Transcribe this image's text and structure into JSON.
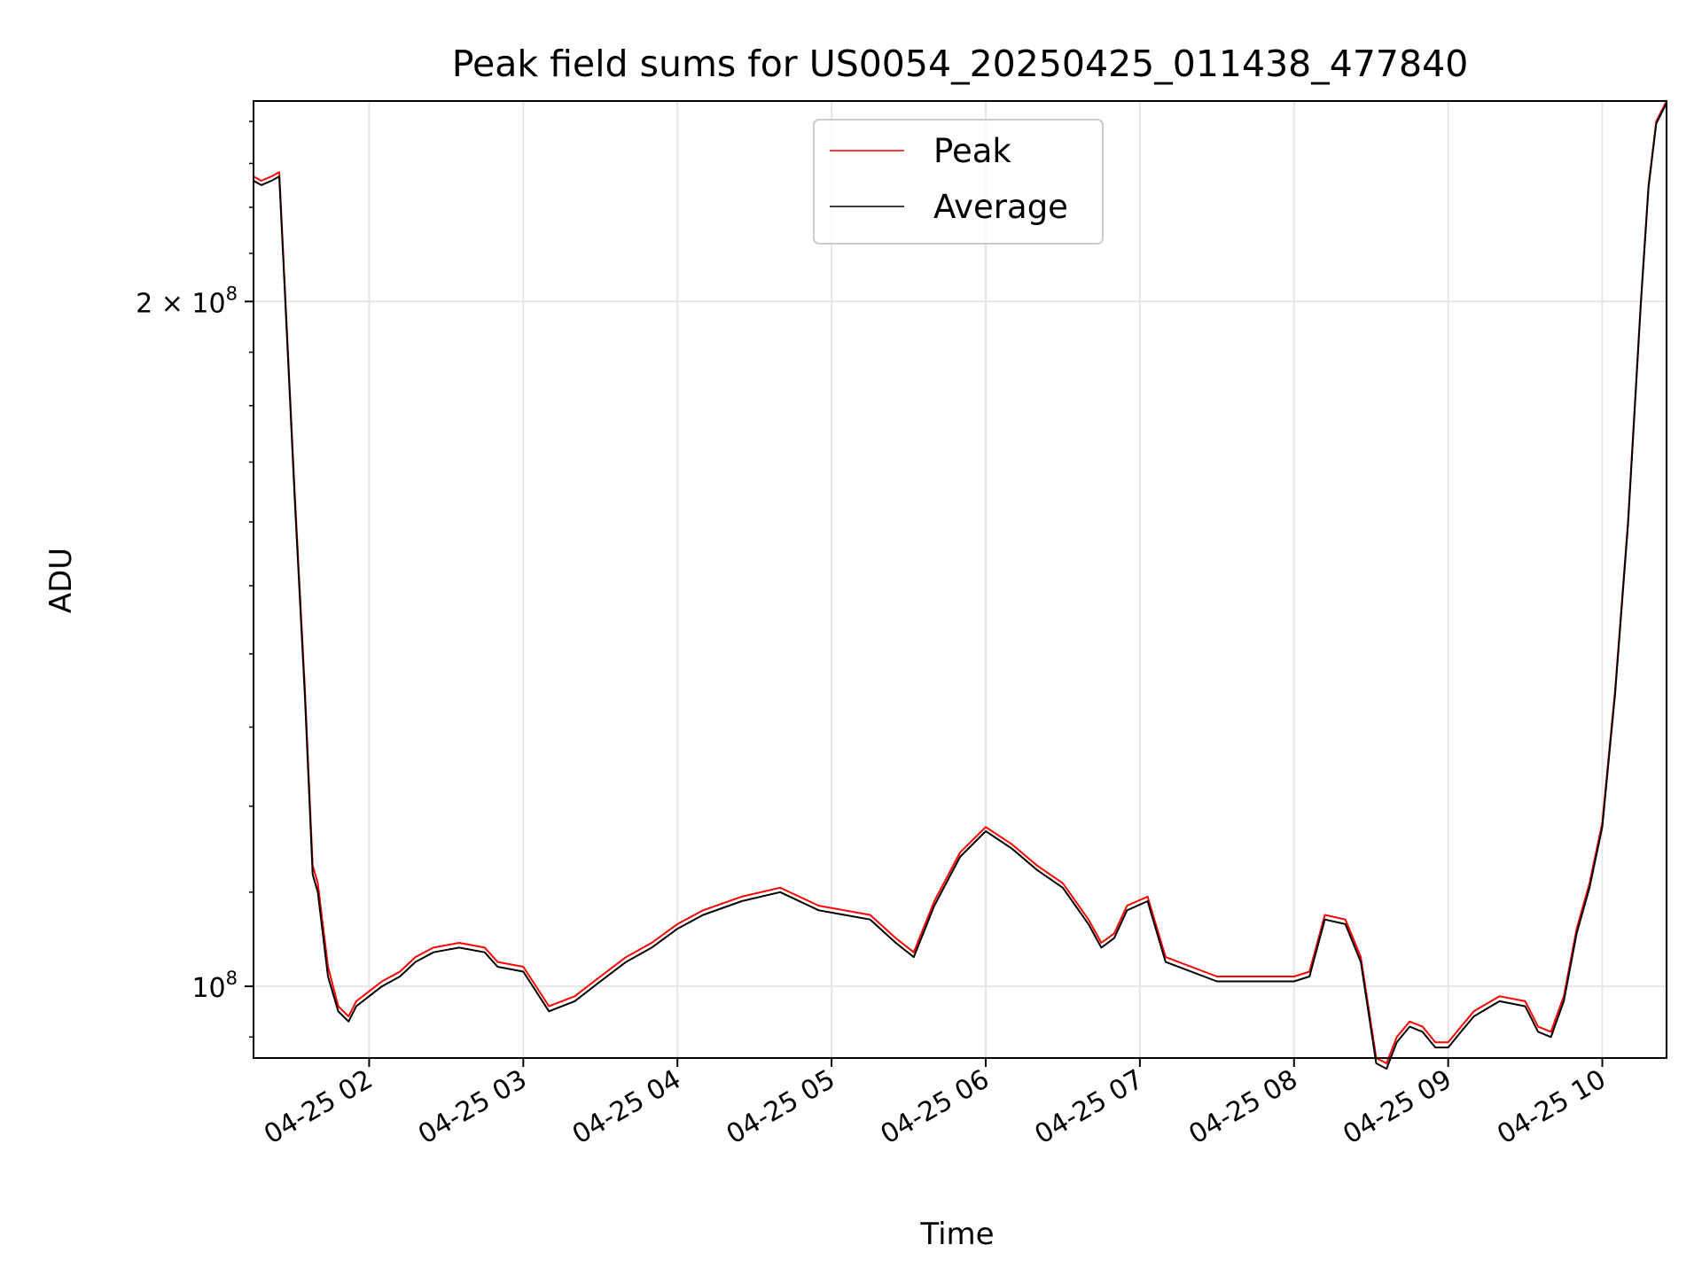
{
  "chart_data": {
    "type": "line",
    "title": "Peak field sums for US0054_20250425_011438_477840",
    "xlabel": "Time",
    "ylabel": "ADU",
    "y_scale": "log",
    "grid": true,
    "legend_position": "top-center",
    "xlim": [
      "2025-04-25 01:15",
      "2025-04-25 10:25"
    ],
    "ylim": [
      93000000,
      245000000
    ],
    "x_ticks": [
      {
        "value": "2025-04-25 02:00",
        "label": "04-25 02"
      },
      {
        "value": "2025-04-25 03:00",
        "label": "04-25 03"
      },
      {
        "value": "2025-04-25 04:00",
        "label": "04-25 04"
      },
      {
        "value": "2025-04-25 05:00",
        "label": "04-25 05"
      },
      {
        "value": "2025-04-25 06:00",
        "label": "04-25 06"
      },
      {
        "value": "2025-04-25 07:00",
        "label": "04-25 07"
      },
      {
        "value": "2025-04-25 08:00",
        "label": "04-25 08"
      },
      {
        "value": "2025-04-25 09:00",
        "label": "04-25 09"
      },
      {
        "value": "2025-04-25 10:00",
        "label": "04-25 10"
      }
    ],
    "y_ticks": [
      {
        "value": 100000000,
        "mantissa": "10",
        "exponent": "8"
      },
      {
        "value": 200000000,
        "mantissa": "2 × 10",
        "exponent": "8"
      }
    ],
    "x": [
      "2025-04-25 01:15",
      "2025-04-25 01:18",
      "2025-04-25 01:22",
      "2025-04-25 01:25",
      "2025-04-25 01:27",
      "2025-04-25 01:31",
      "2025-04-25 01:35",
      "2025-04-25 01:38",
      "2025-04-25 01:40",
      "2025-04-25 01:44",
      "2025-04-25 01:48",
      "2025-04-25 01:52",
      "2025-04-25 01:55",
      "2025-04-25 02:00",
      "2025-04-25 02:05",
      "2025-04-25 02:12",
      "2025-04-25 02:18",
      "2025-04-25 02:25",
      "2025-04-25 02:35",
      "2025-04-25 02:45",
      "2025-04-25 02:50",
      "2025-04-25 03:00",
      "2025-04-25 03:10",
      "2025-04-25 03:20",
      "2025-04-25 03:30",
      "2025-04-25 03:40",
      "2025-04-25 03:50",
      "2025-04-25 04:00",
      "2025-04-25 04:10",
      "2025-04-25 04:25",
      "2025-04-25 04:40",
      "2025-04-25 04:55",
      "2025-04-25 05:05",
      "2025-04-25 05:15",
      "2025-04-25 05:25",
      "2025-04-25 05:32",
      "2025-04-25 05:40",
      "2025-04-25 05:50",
      "2025-04-25 06:00",
      "2025-04-25 06:10",
      "2025-04-25 06:20",
      "2025-04-25 06:30",
      "2025-04-25 06:40",
      "2025-04-25 06:45",
      "2025-04-25 06:50",
      "2025-04-25 06:55",
      "2025-04-25 07:03",
      "2025-04-25 07:10",
      "2025-04-25 07:30",
      "2025-04-25 07:45",
      "2025-04-25 08:00",
      "2025-04-25 08:06",
      "2025-04-25 08:12",
      "2025-04-25 08:20",
      "2025-04-25 08:26",
      "2025-04-25 08:32",
      "2025-04-25 08:36",
      "2025-04-25 08:40",
      "2025-04-25 08:45",
      "2025-04-25 08:50",
      "2025-04-25 08:55",
      "2025-04-25 09:00",
      "2025-04-25 09:05",
      "2025-04-25 09:10",
      "2025-04-25 09:20",
      "2025-04-25 09:30",
      "2025-04-25 09:35",
      "2025-04-25 09:40",
      "2025-04-25 09:45",
      "2025-04-25 09:50",
      "2025-04-25 09:55",
      "2025-04-25 10:00",
      "2025-04-25 10:05",
      "2025-04-25 10:10",
      "2025-04-25 10:15",
      "2025-04-25 10:18",
      "2025-04-25 10:21",
      "2025-04-25 10:25"
    ],
    "series": [
      {
        "name": "Peak",
        "color": "#ff0000",
        "values": [
          227000000,
          226000000,
          227000000,
          228000000,
          205000000,
          165000000,
          135000000,
          113000000,
          111000000,
          102000000,
          98000000,
          97000000,
          98500000,
          99500000,
          100500000,
          101500000,
          103000000,
          104000000,
          104500000,
          104000000,
          102500000,
          102000000,
          98000000,
          99000000,
          101000000,
          103000000,
          104500000,
          106500000,
          108000000,
          109500000,
          110500000,
          108500000,
          108000000,
          107500000,
          105000000,
          103500000,
          109000000,
          114500000,
          117500000,
          115500000,
          113000000,
          111000000,
          107000000,
          104500000,
          105500000,
          108500000,
          109500000,
          103000000,
          101000000,
          101000000,
          101000000,
          101500000,
          107500000,
          107000000,
          103000000,
          93000000,
          92500000,
          95000000,
          96500000,
          96000000,
          94500000,
          94500000,
          96000000,
          97500000,
          99000000,
          98500000,
          96000000,
          95500000,
          99000000,
          106000000,
          111000000,
          118000000,
          135000000,
          160000000,
          200000000,
          225000000,
          240000000,
          245000000
        ]
      },
      {
        "name": "Average",
        "color": "#000000",
        "values": [
          226000000,
          225000000,
          226000000,
          227000000,
          204000000,
          164000000,
          134000000,
          112000000,
          110000000,
          101000000,
          97500000,
          96500000,
          98000000,
          99000000,
          100000000,
          101000000,
          102500000,
          103500000,
          104000000,
          103500000,
          102000000,
          101500000,
          97500000,
          98500000,
          100500000,
          102500000,
          104000000,
          106000000,
          107500000,
          109000000,
          110000000,
          108000000,
          107500000,
          107000000,
          104500000,
          103000000,
          108500000,
          114000000,
          117000000,
          115000000,
          112500000,
          110500000,
          106500000,
          104000000,
          105000000,
          108000000,
          109000000,
          102500000,
          100500000,
          100500000,
          100500000,
          101000000,
          107000000,
          106500000,
          102500000,
          92500000,
          92000000,
          94500000,
          96000000,
          95500000,
          94000000,
          94000000,
          95500000,
          97000000,
          98500000,
          98000000,
          95500000,
          95000000,
          98500000,
          105500000,
          110500000,
          117500000,
          134500000,
          159500000,
          199500000,
          224500000,
          239500000,
          244500000
        ]
      }
    ]
  }
}
